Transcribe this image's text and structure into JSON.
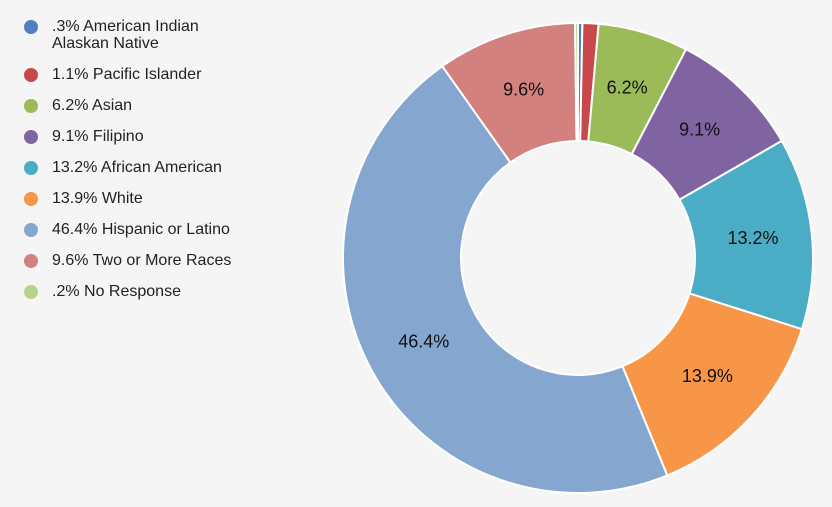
{
  "chart_data": {
    "type": "pie",
    "donut": true,
    "start_angle_deg": 0,
    "direction": "clockwise",
    "legend_position": "left",
    "slices": [
      {
        "legend": ".3% American Indian\nAlaskan Native",
        "value": 0.3,
        "label": "",
        "color": "#4f7fbf"
      },
      {
        "legend": "1.1% Pacific Islander",
        "value": 1.1,
        "label": "",
        "color": "#c9494a"
      },
      {
        "legend": "6.2% Asian",
        "value": 6.2,
        "label": "6.2%",
        "color": "#9bbb59"
      },
      {
        "legend": "9.1% Filipino",
        "value": 9.1,
        "label": "9.1%",
        "color": "#8064a2"
      },
      {
        "legend": "13.2% African  American",
        "value": 13.2,
        "label": "13.2%",
        "color": "#4bacc6"
      },
      {
        "legend": "13.9% White",
        "value": 13.9,
        "label": "13.9%",
        "color": "#f79646"
      },
      {
        "legend": "46.4% Hispanic or Latino",
        "value": 46.4,
        "label": "46.4%",
        "color": "#84a6cf"
      },
      {
        "legend": "9.6% Two or More Races",
        "value": 9.6,
        "label": "9.6%",
        "color": "#d2817e"
      },
      {
        "legend": ".2% No Response",
        "value": 0.2,
        "label": "",
        "color": "#b6d38b"
      }
    ]
  }
}
